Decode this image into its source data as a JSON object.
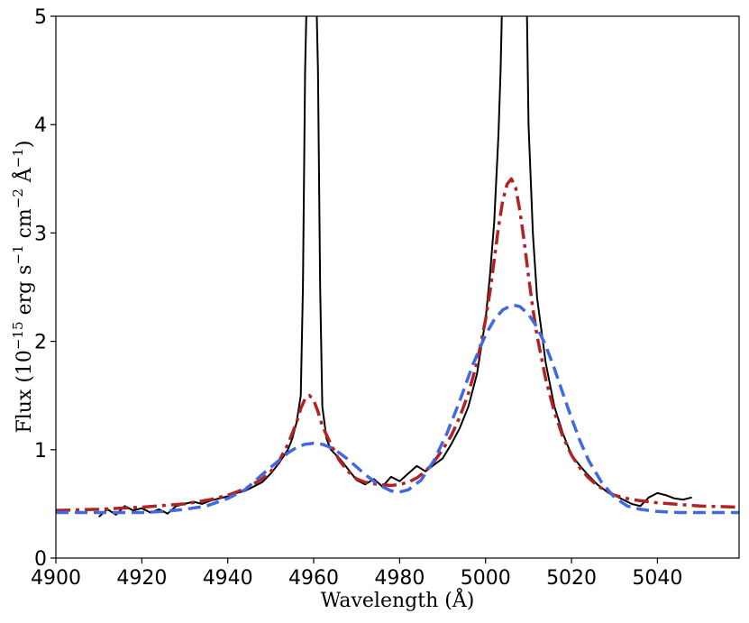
{
  "chart_data": {
    "type": "line",
    "xlabel": "Wavelength (Å)",
    "ylabel_parts": {
      "prefix": "Flux (10",
      "exp_15": "−15",
      "erg": " erg s",
      "exp_1": "−1",
      "cm": " cm",
      "exp_2": "−2",
      "ang": " Å",
      "exp_3": "−1",
      "close": ")"
    },
    "xlim": [
      4900,
      5059
    ],
    "ylim": [
      0,
      5
    ],
    "x_ticks": [
      4900,
      4920,
      4940,
      4960,
      4980,
      5000,
      5020,
      5040
    ],
    "y_ticks": [
      0,
      1,
      2,
      3,
      4,
      5
    ],
    "grid": false,
    "series": [
      {
        "style": "solid",
        "color": "#000000",
        "x": [
          4910,
          4912,
          4914,
          4916,
          4918,
          4920,
          4922,
          4924,
          4926,
          4928,
          4930,
          4932,
          4934,
          4936,
          4938,
          4940,
          4942,
          4944,
          4946,
          4948,
          4950,
          4952,
          4954,
          4955,
          4956,
          4957,
          4957.5,
          4958,
          4958.5,
          4960.5,
          4961,
          4961.5,
          4962,
          4963,
          4964,
          4966,
          4968,
          4970,
          4972,
          4974,
          4976,
          4978,
          4980,
          4982,
          4984,
          4986,
          4988,
          4990,
          4992,
          4994,
          4996,
          4998,
          5000,
          5001,
          5002,
          5003,
          5003.5,
          5004,
          5004.5,
          5009,
          5009.5,
          5010,
          5011,
          5012,
          5014,
          5016,
          5018,
          5020,
          5022,
          5024,
          5026,
          5028,
          5030,
          5032,
          5034,
          5036,
          5038,
          5040,
          5042,
          5044,
          5046,
          5048
        ],
        "y": [
          0.38,
          0.45,
          0.4,
          0.48,
          0.44,
          0.46,
          0.42,
          0.45,
          0.41,
          0.48,
          0.5,
          0.52,
          0.5,
          0.53,
          0.55,
          0.57,
          0.6,
          0.62,
          0.66,
          0.7,
          0.78,
          0.88,
          1.0,
          1.1,
          1.25,
          1.5,
          2.5,
          4.5,
          5.4,
          5.4,
          4.5,
          2.5,
          1.4,
          1.1,
          1.0,
          0.92,
          0.82,
          0.72,
          0.68,
          0.73,
          0.66,
          0.75,
          0.71,
          0.78,
          0.85,
          0.8,
          0.86,
          0.92,
          1.05,
          1.2,
          1.4,
          1.7,
          2.2,
          2.6,
          3.1,
          3.9,
          4.5,
          5.4,
          5.6,
          5.6,
          5.4,
          4.0,
          3.0,
          2.4,
          1.8,
          1.4,
          1.15,
          0.95,
          0.85,
          0.76,
          0.68,
          0.62,
          0.58,
          0.54,
          0.5,
          0.48,
          0.56,
          0.6,
          0.58,
          0.55,
          0.54,
          0.56
        ]
      },
      {
        "style": "dashdot",
        "color": "#b22222",
        "x": [
          4900,
          4910,
          4920,
          4930,
          4936,
          4940,
          4944,
          4948,
          4950,
          4952,
          4954,
          4956,
          4957,
          4958,
          4959,
          4960,
          4961,
          4962,
          4964,
          4966,
          4968,
          4970,
          4972,
          4975,
          4978,
          4980,
          4982,
          4984,
          4986,
          4988,
          4990,
          4992,
          4994,
          4996,
          4998,
          5000,
          5001,
          5002,
          5003,
          5004,
          5005,
          5006,
          5007,
          5008,
          5009,
          5010,
          5011,
          5012,
          5014,
          5016,
          5018,
          5020,
          5022,
          5024,
          5026,
          5028,
          5030,
          5034,
          5040,
          5050,
          5059
        ],
        "y": [
          0.44,
          0.45,
          0.47,
          0.5,
          0.54,
          0.58,
          0.64,
          0.73,
          0.8,
          0.9,
          1.05,
          1.25,
          1.38,
          1.47,
          1.5,
          1.46,
          1.35,
          1.22,
          1.05,
          0.9,
          0.8,
          0.73,
          0.7,
          0.68,
          0.67,
          0.68,
          0.7,
          0.74,
          0.8,
          0.89,
          1.0,
          1.13,
          1.3,
          1.52,
          1.8,
          2.2,
          2.45,
          2.75,
          3.05,
          3.3,
          3.45,
          3.5,
          3.42,
          3.2,
          2.92,
          2.6,
          2.3,
          2.05,
          1.65,
          1.35,
          1.12,
          0.95,
          0.83,
          0.74,
          0.67,
          0.62,
          0.58,
          0.54,
          0.51,
          0.48,
          0.47
        ]
      },
      {
        "style": "dashed",
        "color": "#4169e1",
        "x": [
          4900,
          4910,
          4920,
          4925,
          4930,
          4935,
          4940,
          4944,
          4948,
          4951,
          4954,
          4956,
          4958,
          4960,
          4962,
          4964,
          4966,
          4968,
          4970,
          4972,
          4975,
          4978,
          4980,
          4982,
          4985,
          4988,
          4991,
          4994,
          4997,
          5000,
          5002,
          5004,
          5006,
          5007,
          5008,
          5010,
          5012,
          5014,
          5016,
          5018,
          5020,
          5022,
          5024,
          5027,
          5030,
          5033,
          5036,
          5040,
          5045,
          5050,
          5059
        ],
        "y": [
          0.42,
          0.42,
          0.42,
          0.43,
          0.45,
          0.48,
          0.55,
          0.63,
          0.77,
          0.87,
          0.97,
          1.02,
          1.05,
          1.06,
          1.05,
          1.02,
          0.97,
          0.91,
          0.84,
          0.77,
          0.68,
          0.62,
          0.61,
          0.63,
          0.72,
          0.9,
          1.15,
          1.45,
          1.78,
          2.06,
          2.2,
          2.29,
          2.33,
          2.33,
          2.32,
          2.25,
          2.13,
          1.96,
          1.75,
          1.52,
          1.29,
          1.08,
          0.9,
          0.7,
          0.56,
          0.48,
          0.45,
          0.43,
          0.42,
          0.42,
          0.42
        ]
      }
    ]
  }
}
